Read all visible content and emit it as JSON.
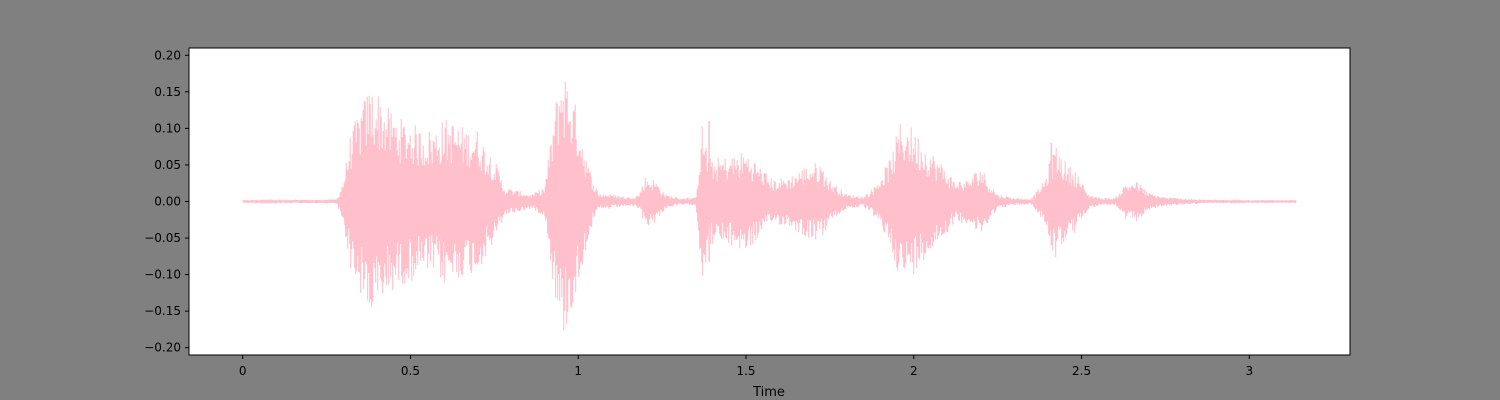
{
  "chart_data": {
    "type": "area",
    "title": "",
    "xlabel": "Time",
    "ylabel": "",
    "xlim": [
      -0.16,
      3.3
    ],
    "ylim": [
      -0.21,
      0.21
    ],
    "duration": 3.14,
    "xticks": [
      {
        "value": 0,
        "label": "0"
      },
      {
        "value": 0.5,
        "label": "0.5"
      },
      {
        "value": 1,
        "label": "1"
      },
      {
        "value": 1.5,
        "label": "1.5"
      },
      {
        "value": 2,
        "label": "2"
      },
      {
        "value": 2.5,
        "label": "2.5"
      },
      {
        "value": 3,
        "label": "3"
      }
    ],
    "yticks": [
      {
        "value": 0.2,
        "label": "0.20"
      },
      {
        "value": 0.15,
        "label": "0.15"
      },
      {
        "value": 0.1,
        "label": "0.10"
      },
      {
        "value": 0.05,
        "label": "0.05"
      },
      {
        "value": 0,
        "label": "0.00"
      },
      {
        "value": -0.05,
        "label": "−0.05"
      },
      {
        "value": -0.1,
        "label": "−0.10"
      },
      {
        "value": -0.15,
        "label": "−0.15"
      },
      {
        "value": -0.2,
        "label": "−0.20"
      }
    ],
    "grid": false,
    "series": [
      {
        "color": "#ffc0cb",
        "envelope": {
          "t": [
            0,
            0.28,
            0.3,
            0.32,
            0.35,
            0.38,
            0.4,
            0.43,
            0.47,
            0.5,
            0.53,
            0.57,
            0.6,
            0.63,
            0.67,
            0.7,
            0.72,
            0.75,
            0.78,
            0.82,
            0.86,
            0.9,
            0.93,
            0.95,
            0.97,
            1.0,
            1.03,
            1.06,
            1.1,
            1.15,
            1.18,
            1.2,
            1.23,
            1.26,
            1.3,
            1.35,
            1.37,
            1.39,
            1.42,
            1.47,
            1.5,
            1.53,
            1.58,
            1.63,
            1.68,
            1.72,
            1.75,
            1.8,
            1.85,
            1.88,
            1.93,
            1.96,
            1.98,
            2.0,
            2.03,
            2.08,
            2.12,
            2.16,
            2.2,
            2.22,
            2.25,
            2.3,
            2.35,
            2.39,
            2.42,
            2.46,
            2.48,
            2.52,
            2.56,
            2.6,
            2.63,
            2.66,
            2.7,
            2.75,
            2.85,
            3.0,
            3.14
          ],
          "amp": [
            0.001,
            0.003,
            0.03,
            0.09,
            0.13,
            0.16,
            0.155,
            0.13,
            0.115,
            0.11,
            0.1,
            0.1,
            0.115,
            0.11,
            0.1,
            0.1,
            0.08,
            0.06,
            0.02,
            0.015,
            0.01,
            0.02,
            0.13,
            0.19,
            0.17,
            0.12,
            0.05,
            0.012,
            0.01,
            0.006,
            0.01,
            0.035,
            0.03,
            0.01,
            0.005,
            0.005,
            0.11,
            0.06,
            0.06,
            0.065,
            0.07,
            0.055,
            0.03,
            0.035,
            0.05,
            0.055,
            0.03,
            0.01,
            0.007,
            0.02,
            0.06,
            0.11,
            0.11,
            0.1,
            0.08,
            0.055,
            0.03,
            0.03,
            0.05,
            0.03,
            0.01,
            0.005,
            0.004,
            0.03,
            0.08,
            0.05,
            0.045,
            0.01,
            0.005,
            0.005,
            0.025,
            0.03,
            0.012,
            0.006,
            0.003,
            0.001,
            0.001
          ]
        },
        "spikes": [
          {
            "t": 1.39,
            "amp": 0.11
          },
          {
            "t": 2.41,
            "amp": 0.08
          }
        ]
      }
    ]
  }
}
